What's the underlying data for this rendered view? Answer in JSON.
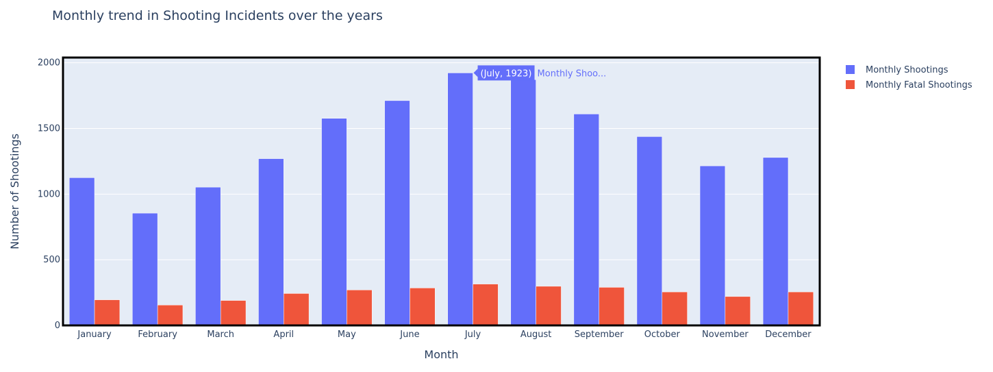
{
  "chart_data": {
    "type": "bar",
    "title": "Monthly trend in Shooting Incidents over the years",
    "xlabel": "Month",
    "ylabel": "Number of Shootings",
    "categories": [
      "January",
      "February",
      "March",
      "April",
      "May",
      "June",
      "July",
      "August",
      "September",
      "October",
      "November",
      "December"
    ],
    "series": [
      {
        "name": "Monthly Shootings",
        "color": "#636efa",
        "values": [
          1125,
          855,
          1053,
          1270,
          1577,
          1712,
          1923,
          1872,
          1610,
          1438,
          1215,
          1279
        ]
      },
      {
        "name": "Monthly Fatal Shootings",
        "color": "#ef553b",
        "values": [
          195,
          155,
          190,
          243,
          270,
          285,
          315,
          298,
          290,
          255,
          220,
          255
        ]
      }
    ],
    "ylim": [
      0,
      2040
    ],
    "yticks": [
      0,
      500,
      1000,
      1500,
      2000
    ],
    "grid": true,
    "legend_position": "top-right",
    "plot_background": "#e5ecf6",
    "hover_label": {
      "category_index": 6,
      "series_index": 0,
      "text": "(July, 1923)",
      "series_text": "Monthly Shoo..."
    }
  }
}
